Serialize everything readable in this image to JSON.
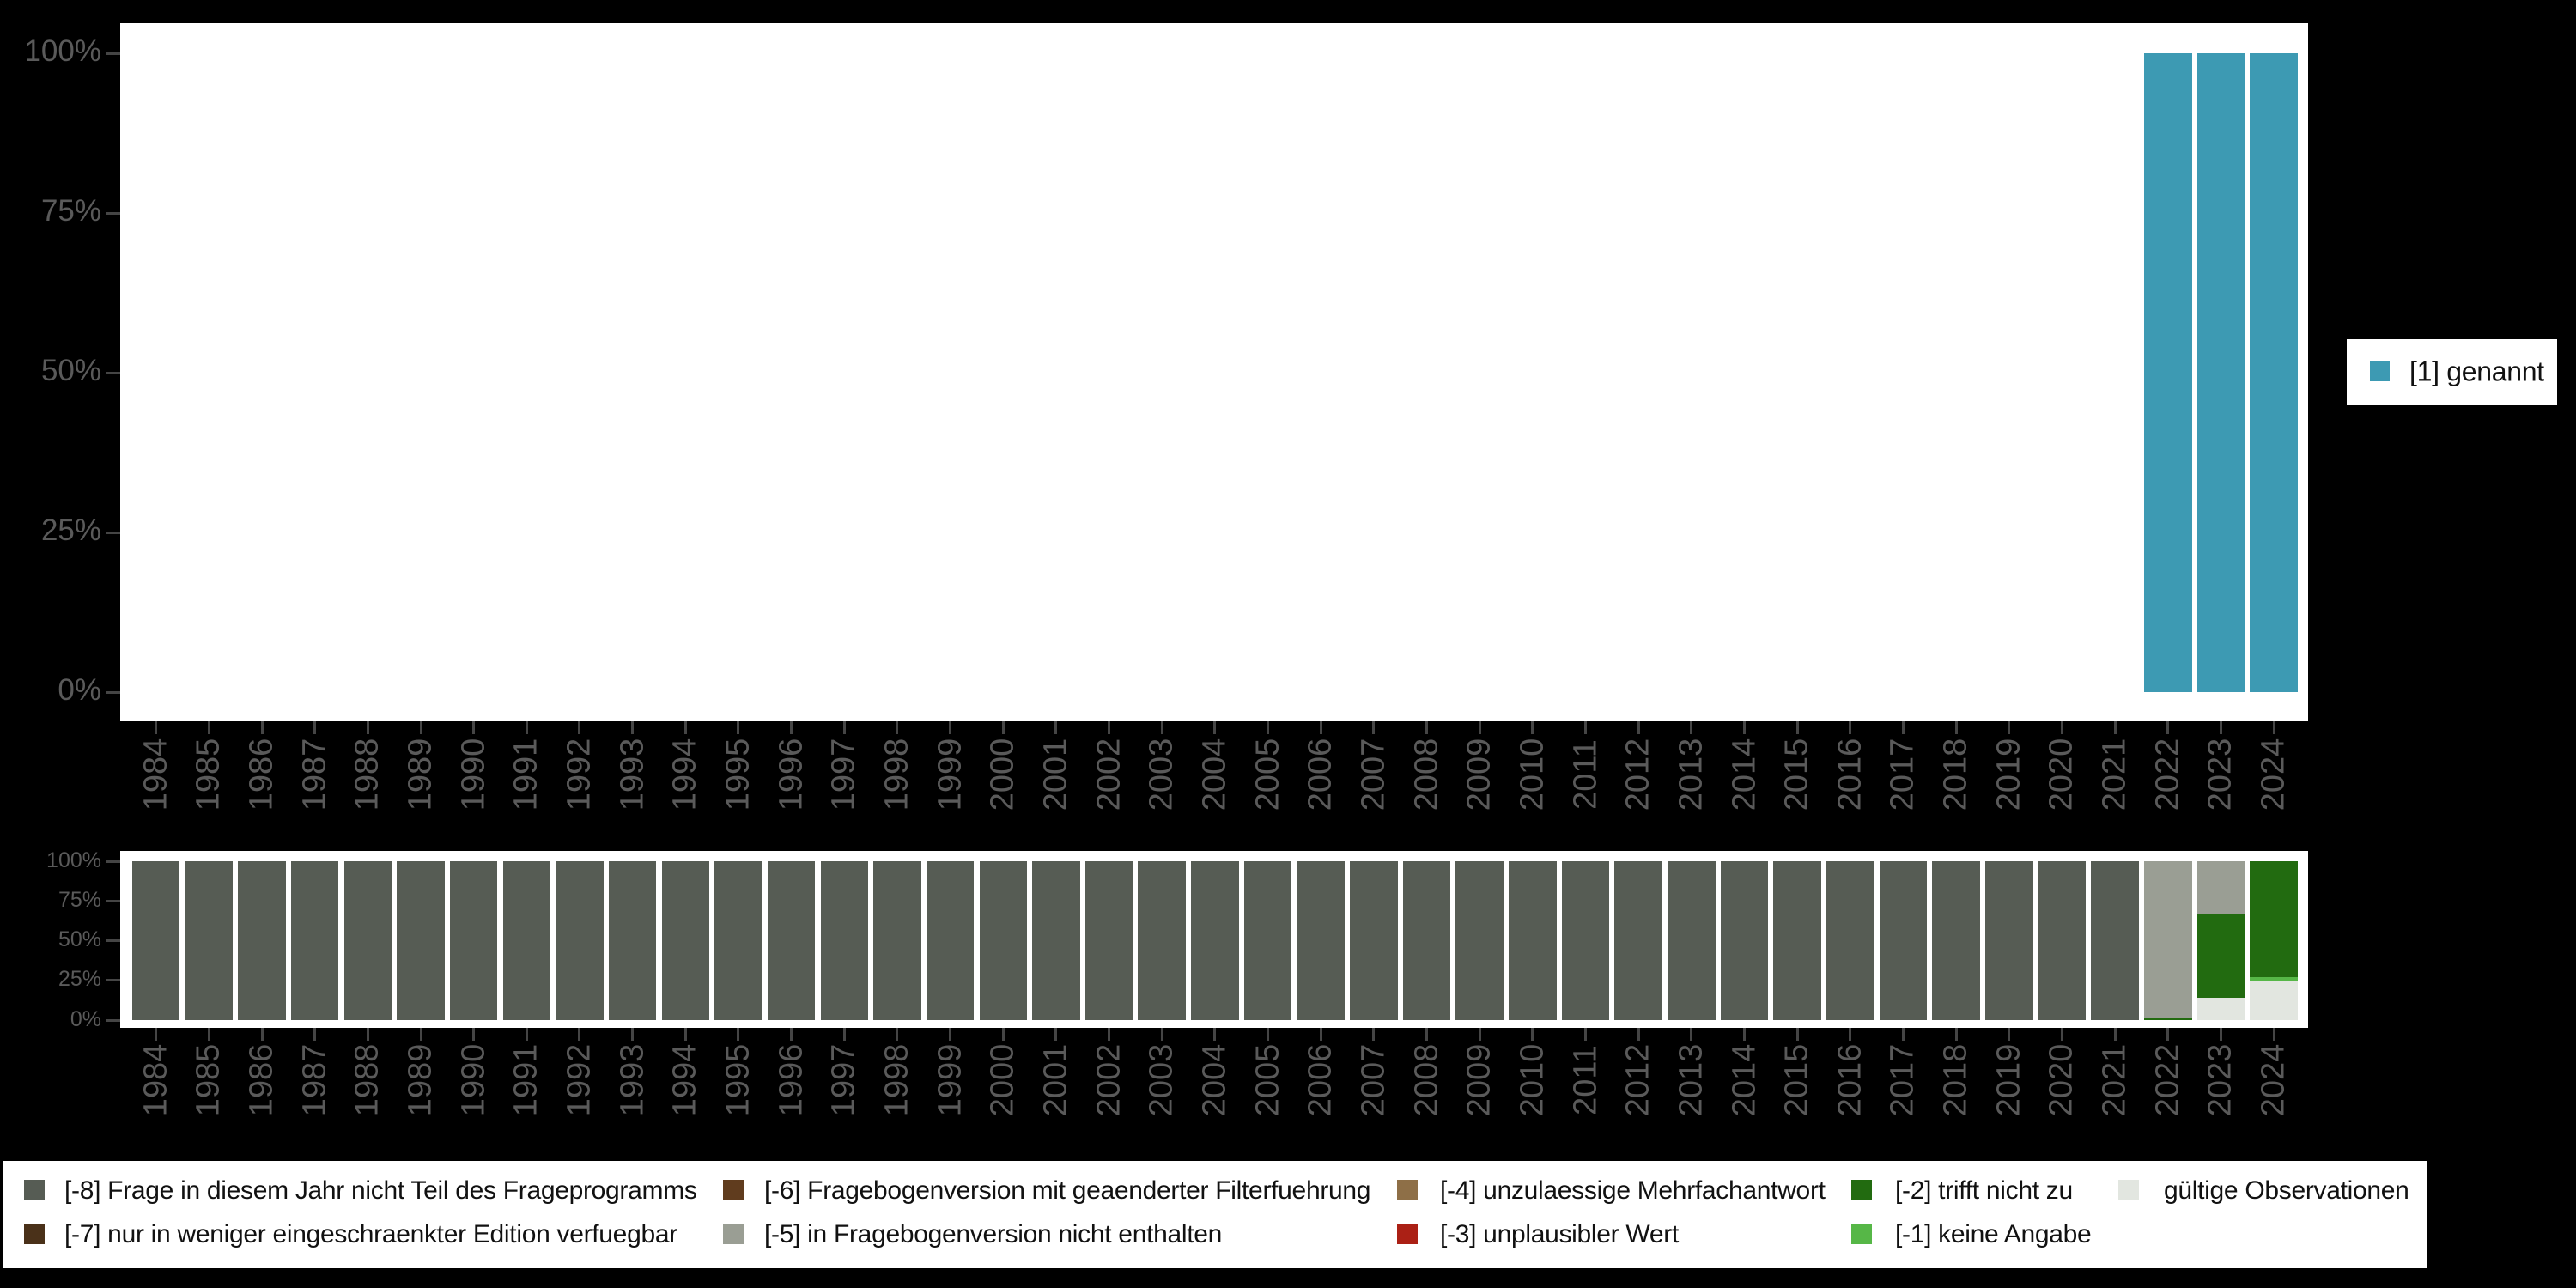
{
  "background": "#000000",
  "axis": {
    "text_color": "#5A5A5A",
    "tick_color": "#454545",
    "y_tick_labels": [
      "100%",
      "75%",
      "50%",
      "25%",
      "0%"
    ]
  },
  "top_legend": {
    "label": "[1] genannt",
    "color": "#3D9AB3"
  },
  "chart_data": [
    {
      "type": "bar",
      "stacked": true,
      "unit": "percent",
      "ylim": [
        0,
        100
      ],
      "y_tick_labels": [
        "100%",
        "75%",
        "50%",
        "25%",
        "0%"
      ],
      "legend_position": "right",
      "categories": [
        "1984",
        "1985",
        "1986",
        "1987",
        "1988",
        "1989",
        "1990",
        "1991",
        "1992",
        "1993",
        "1994",
        "1995",
        "1996",
        "1997",
        "1998",
        "1999",
        "2000",
        "2001",
        "2002",
        "2003",
        "2004",
        "2005",
        "2006",
        "2007",
        "2008",
        "2009",
        "2010",
        "2011",
        "2012",
        "2013",
        "2014",
        "2015",
        "2016",
        "2017",
        "2018",
        "2019",
        "2020",
        "2021",
        "2022",
        "2023",
        "2024"
      ],
      "series": [
        {
          "name": "[1] genannt",
          "color": "#3D9AB3",
          "values": [
            0,
            0,
            0,
            0,
            0,
            0,
            0,
            0,
            0,
            0,
            0,
            0,
            0,
            0,
            0,
            0,
            0,
            0,
            0,
            0,
            0,
            0,
            0,
            0,
            0,
            0,
            0,
            0,
            0,
            0,
            0,
            0,
            0,
            0,
            0,
            0,
            0,
            0,
            100,
            100,
            100
          ]
        }
      ]
    },
    {
      "type": "bar",
      "stacked": true,
      "unit": "percent",
      "ylim": [
        0,
        100
      ],
      "y_tick_labels": [
        "100%",
        "75%",
        "50%",
        "25%",
        "0%"
      ],
      "legend_position": "bottom",
      "categories": [
        "1984",
        "1985",
        "1986",
        "1987",
        "1988",
        "1989",
        "1990",
        "1991",
        "1992",
        "1993",
        "1994",
        "1995",
        "1996",
        "1997",
        "1998",
        "1999",
        "2000",
        "2001",
        "2002",
        "2003",
        "2004",
        "2005",
        "2006",
        "2007",
        "2008",
        "2009",
        "2010",
        "2011",
        "2012",
        "2013",
        "2014",
        "2015",
        "2016",
        "2017",
        "2018",
        "2019",
        "2020",
        "2021",
        "2022",
        "2023",
        "2024"
      ],
      "series": [
        {
          "name": "[-8] Frage in diesem Jahr nicht Teil des Frageprogramms",
          "color": "#565C54",
          "values": [
            100,
            100,
            100,
            100,
            100,
            100,
            100,
            100,
            100,
            100,
            100,
            100,
            100,
            100,
            100,
            100,
            100,
            100,
            100,
            100,
            100,
            100,
            100,
            100,
            100,
            100,
            100,
            100,
            100,
            100,
            100,
            100,
            100,
            100,
            100,
            100,
            100,
            100,
            0,
            0,
            0
          ]
        },
        {
          "name": "[-7] nur in weniger eingeschraenkter Edition verfuegbar",
          "color": "#4A3119",
          "values": [
            0,
            0,
            0,
            0,
            0,
            0,
            0,
            0,
            0,
            0,
            0,
            0,
            0,
            0,
            0,
            0,
            0,
            0,
            0,
            0,
            0,
            0,
            0,
            0,
            0,
            0,
            0,
            0,
            0,
            0,
            0,
            0,
            0,
            0,
            0,
            0,
            0,
            0,
            0,
            0,
            0
          ]
        },
        {
          "name": "[-6] Fragebogenversion mit geaenderter Filterfuehrung",
          "color": "#603C1E",
          "values": [
            0,
            0,
            0,
            0,
            0,
            0,
            0,
            0,
            0,
            0,
            0,
            0,
            0,
            0,
            0,
            0,
            0,
            0,
            0,
            0,
            0,
            0,
            0,
            0,
            0,
            0,
            0,
            0,
            0,
            0,
            0,
            0,
            0,
            0,
            0,
            0,
            0,
            0,
            0,
            0,
            0
          ]
        },
        {
          "name": "[-5] in Fragebogenversion nicht enthalten",
          "color": "#9A9E94",
          "values": [
            0,
            0,
            0,
            0,
            0,
            0,
            0,
            0,
            0,
            0,
            0,
            0,
            0,
            0,
            0,
            0,
            0,
            0,
            0,
            0,
            0,
            0,
            0,
            0,
            0,
            0,
            0,
            0,
            0,
            0,
            0,
            0,
            0,
            0,
            0,
            0,
            0,
            0,
            99,
            33,
            0
          ]
        },
        {
          "name": "[-4] unzulaessige Mehrfachantwort",
          "color": "#8E6F47",
          "values": [
            0,
            0,
            0,
            0,
            0,
            0,
            0,
            0,
            0,
            0,
            0,
            0,
            0,
            0,
            0,
            0,
            0,
            0,
            0,
            0,
            0,
            0,
            0,
            0,
            0,
            0,
            0,
            0,
            0,
            0,
            0,
            0,
            0,
            0,
            0,
            0,
            0,
            0,
            0,
            0,
            0
          ]
        },
        {
          "name": "[-3] unplausibler Wert",
          "color": "#AB2015",
          "values": [
            0,
            0,
            0,
            0,
            0,
            0,
            0,
            0,
            0,
            0,
            0,
            0,
            0,
            0,
            0,
            0,
            0,
            0,
            0,
            0,
            0,
            0,
            0,
            0,
            0,
            0,
            0,
            0,
            0,
            0,
            0,
            0,
            0,
            0,
            0,
            0,
            0,
            0,
            0,
            0,
            0
          ]
        },
        {
          "name": "[-2] trifft nicht zu",
          "color": "#226B10",
          "values": [
            0,
            0,
            0,
            0,
            0,
            0,
            0,
            0,
            0,
            0,
            0,
            0,
            0,
            0,
            0,
            0,
            0,
            0,
            0,
            0,
            0,
            0,
            0,
            0,
            0,
            0,
            0,
            0,
            0,
            0,
            0,
            0,
            0,
            0,
            0,
            0,
            0,
            0,
            1,
            53,
            73
          ]
        },
        {
          "name": "[-1] keine Angabe",
          "color": "#56B747",
          "values": [
            0,
            0,
            0,
            0,
            0,
            0,
            0,
            0,
            0,
            0,
            0,
            0,
            0,
            0,
            0,
            0,
            0,
            0,
            0,
            0,
            0,
            0,
            0,
            0,
            0,
            0,
            0,
            0,
            0,
            0,
            0,
            0,
            0,
            0,
            0,
            0,
            0,
            0,
            0,
            0,
            2
          ]
        },
        {
          "name": "gültige Observationen",
          "color": "#E2E6E0",
          "values": [
            0,
            0,
            0,
            0,
            0,
            0,
            0,
            0,
            0,
            0,
            0,
            0,
            0,
            0,
            0,
            0,
            0,
            0,
            0,
            0,
            0,
            0,
            0,
            0,
            0,
            0,
            0,
            0,
            0,
            0,
            0,
            0,
            0,
            0,
            0,
            0,
            0,
            0,
            0,
            14,
            25
          ]
        }
      ]
    }
  ]
}
